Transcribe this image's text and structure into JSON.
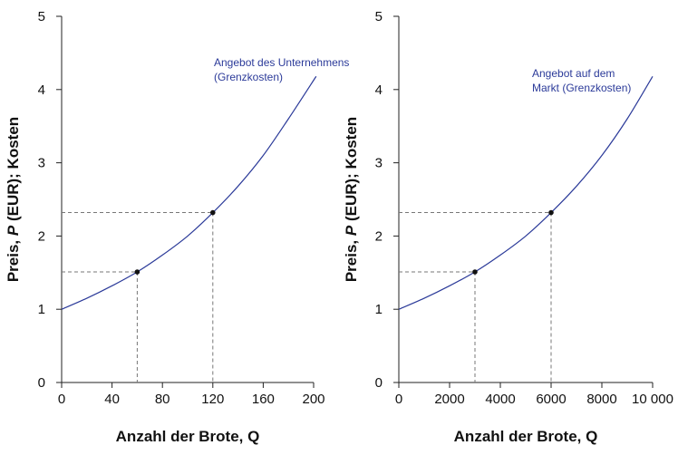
{
  "chart_data": [
    {
      "type": "line",
      "xlabel": "Anzahl der Brote, Q",
      "ylabel_parts": [
        "Preis, ",
        "P",
        " (EUR); Kosten"
      ],
      "xlim": [
        0,
        200
      ],
      "ylim": [
        0,
        5
      ],
      "xticks": [
        0,
        40,
        80,
        120,
        160,
        200
      ],
      "xtick_labels": [
        "0",
        "40",
        "80",
        "120",
        "160",
        "200"
      ],
      "yticks": [
        0,
        1,
        2,
        3,
        4,
        5
      ],
      "ytick_labels": [
        "0",
        "1",
        "2",
        "3",
        "4",
        "5"
      ],
      "series": [
        {
          "name": "Angebot des Unternehmens (Grenzkosten)",
          "x": [
            0,
            20,
            40,
            60,
            80,
            100,
            120,
            140,
            160,
            180,
            202
          ],
          "y": [
            1.0,
            1.15,
            1.32,
            1.51,
            1.74,
            2.0,
            2.32,
            2.68,
            3.1,
            3.6,
            4.18
          ]
        }
      ],
      "annotation_lines": [
        "Angebot des Unternehmens",
        "(Grenzkosten)"
      ],
      "points": [
        {
          "x": 60,
          "y": 1.51
        },
        {
          "x": 120,
          "y": 2.32
        }
      ],
      "grid": false
    },
    {
      "type": "line",
      "xlabel": "Anzahl der Brote, Q",
      "ylabel_parts": [
        "Preis, ",
        "P",
        " (EUR); Kosten"
      ],
      "xlim": [
        0,
        10000
      ],
      "ylim": [
        0,
        5
      ],
      "xticks": [
        0,
        2000,
        4000,
        6000,
        8000,
        10000
      ],
      "xtick_labels": [
        "0",
        "2000",
        "4000",
        "6000",
        "8000",
        "10 000"
      ],
      "yticks": [
        0,
        1,
        2,
        3,
        4,
        5
      ],
      "ytick_labels": [
        "0",
        "1",
        "2",
        "3",
        "4",
        "5"
      ],
      "series": [
        {
          "name": "Angebot auf dem Markt (Grenzkosten)",
          "x": [
            0,
            1000,
            2000,
            3000,
            4000,
            5000,
            6000,
            7000,
            8000,
            9000,
            10000
          ],
          "y": [
            1.0,
            1.15,
            1.32,
            1.51,
            1.74,
            2.0,
            2.32,
            2.68,
            3.1,
            3.6,
            4.18
          ]
        }
      ],
      "annotation_lines": [
        "Angebot auf dem",
        "Markt (Grenzkosten)"
      ],
      "points": [
        {
          "x": 3000,
          "y": 1.51
        },
        {
          "x": 6000,
          "y": 2.32
        }
      ],
      "grid": false
    }
  ]
}
